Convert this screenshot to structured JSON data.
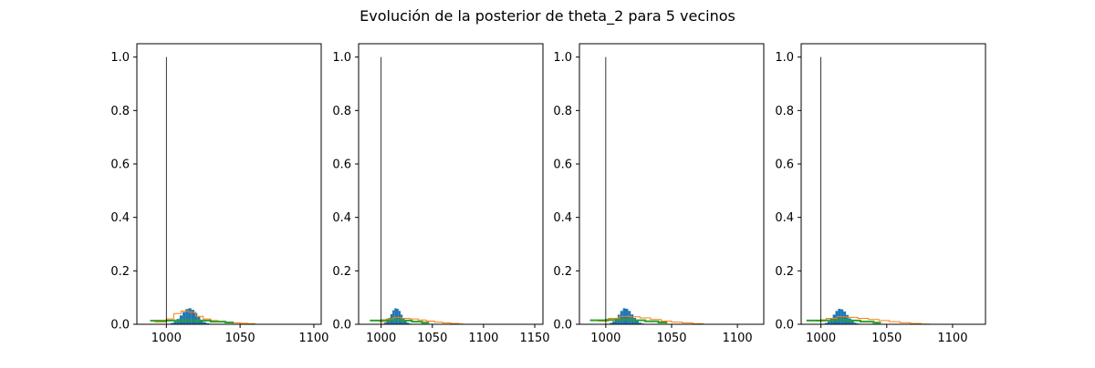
{
  "figure": {
    "title": "Evolución de la posterior de theta_2 para 5 vecinos"
  },
  "colors": {
    "blue": "#1f77b4",
    "orange": "#ff7f0e",
    "green": "#2ca02c",
    "vline": "#000000"
  },
  "chart_data": [
    {
      "type": "histogram",
      "title": "",
      "xlabel": "",
      "ylabel": "",
      "xlim": [
        980,
        1105
      ],
      "ylim": [
        0,
        1.05
      ],
      "x_ticks": [
        1000,
        1050,
        1100
      ],
      "y_ticks": [
        0.0,
        0.2,
        0.4,
        0.6,
        0.8,
        1.0
      ],
      "grid": false,
      "vline": {
        "x": 1000,
        "y": 1.0
      },
      "series": [
        {
          "style": "filled",
          "color": "blue",
          "x": [
            1002,
            1004,
            1006,
            1008,
            1010,
            1012,
            1014,
            1016,
            1018,
            1020,
            1022,
            1024,
            1026,
            1028,
            1030
          ],
          "y": [
            0.002,
            0.005,
            0.01,
            0.02,
            0.033,
            0.046,
            0.057,
            0.06,
            0.054,
            0.042,
            0.028,
            0.016,
            0.008,
            0.004,
            0.002
          ]
        },
        {
          "style": "step",
          "color": "orange",
          "x": [
            992,
            1000,
            1005,
            1010,
            1015,
            1020,
            1025,
            1030,
            1035,
            1040,
            1045,
            1050,
            1055,
            1060
          ],
          "y": [
            0.008,
            0.02,
            0.04,
            0.05,
            0.045,
            0.03,
            0.02,
            0.014,
            0.01,
            0.008,
            0.005,
            0.004,
            0.002,
            0.001
          ]
        },
        {
          "style": "step",
          "color": "green",
          "x": [
            989,
            1000,
            1010,
            1020,
            1030,
            1040,
            1045
          ],
          "y": [
            0.013,
            0.014,
            0.015,
            0.014,
            0.01,
            0.007,
            0.003
          ]
        }
      ]
    },
    {
      "type": "histogram",
      "title": "",
      "xlabel": "",
      "ylabel": "",
      "xlim": [
        978,
        1158
      ],
      "ylim": [
        0,
        1.05
      ],
      "x_ticks": [
        1000,
        1050,
        1100,
        1150
      ],
      "y_ticks": [
        0.0,
        0.2,
        0.4,
        0.6,
        0.8,
        1.0
      ],
      "grid": false,
      "vline": {
        "x": 1000,
        "y": 1.0
      },
      "series": [
        {
          "style": "filled",
          "color": "blue",
          "x": [
            1002,
            1004,
            1006,
            1008,
            1010,
            1012,
            1014,
            1016,
            1018,
            1020,
            1022,
            1024,
            1026,
            1028,
            1030
          ],
          "y": [
            0.002,
            0.006,
            0.012,
            0.024,
            0.038,
            0.052,
            0.06,
            0.058,
            0.05,
            0.036,
            0.022,
            0.012,
            0.006,
            0.003,
            0.001
          ]
        },
        {
          "style": "step",
          "color": "orange",
          "x": [
            998,
            1005,
            1012,
            1020,
            1028,
            1036,
            1044,
            1052,
            1060,
            1068,
            1076,
            1080
          ],
          "y": [
            0.01,
            0.02,
            0.026,
            0.022,
            0.02,
            0.016,
            0.012,
            0.008,
            0.005,
            0.003,
            0.001,
            0.0
          ]
        },
        {
          "style": "step",
          "color": "green",
          "x": [
            989,
            1000,
            1010,
            1020,
            1030,
            1040,
            1046
          ],
          "y": [
            0.014,
            0.015,
            0.016,
            0.014,
            0.01,
            0.006,
            0.003
          ]
        }
      ]
    },
    {
      "type": "histogram",
      "title": "",
      "xlabel": "",
      "ylabel": "",
      "xlim": [
        980,
        1120
      ],
      "ylim": [
        0,
        1.05
      ],
      "x_ticks": [
        1000,
        1050,
        1100
      ],
      "y_ticks": [
        0.0,
        0.2,
        0.4,
        0.6,
        0.8,
        1.0
      ],
      "grid": false,
      "vline": {
        "x": 1000,
        "y": 1.0
      },
      "series": [
        {
          "style": "filled",
          "color": "blue",
          "x": [
            1002,
            1004,
            1006,
            1008,
            1010,
            1012,
            1014,
            1016,
            1018,
            1020,
            1022,
            1024,
            1026,
            1028,
            1030
          ],
          "y": [
            0.002,
            0.005,
            0.011,
            0.022,
            0.036,
            0.05,
            0.06,
            0.058,
            0.05,
            0.037,
            0.024,
            0.013,
            0.006,
            0.003,
            0.001
          ]
        },
        {
          "style": "step",
          "color": "orange",
          "x": [
            994,
            1002,
            1010,
            1018,
            1026,
            1034,
            1042,
            1050,
            1058,
            1066,
            1074
          ],
          "y": [
            0.012,
            0.022,
            0.03,
            0.028,
            0.024,
            0.018,
            0.012,
            0.008,
            0.005,
            0.002,
            0.0
          ]
        },
        {
          "style": "step",
          "color": "green",
          "x": [
            988,
            1000,
            1010,
            1020,
            1030,
            1040,
            1046
          ],
          "y": [
            0.015,
            0.016,
            0.017,
            0.015,
            0.011,
            0.007,
            0.003
          ]
        }
      ]
    },
    {
      "type": "histogram",
      "title": "",
      "xlabel": "",
      "ylabel": "",
      "xlim": [
        985,
        1125
      ],
      "ylim": [
        0,
        1.05
      ],
      "x_ticks": [
        1000,
        1050,
        1100
      ],
      "y_ticks": [
        0.0,
        0.2,
        0.4,
        0.6,
        0.8,
        1.0
      ],
      "grid": false,
      "vline": {
        "x": 1000,
        "y": 1.0
      },
      "series": [
        {
          "style": "filled",
          "color": "blue",
          "x": [
            1002,
            1004,
            1006,
            1008,
            1010,
            1012,
            1014,
            1016,
            1018,
            1020,
            1022,
            1024,
            1026,
            1028,
            1030
          ],
          "y": [
            0.002,
            0.005,
            0.011,
            0.022,
            0.036,
            0.05,
            0.058,
            0.056,
            0.048,
            0.035,
            0.022,
            0.012,
            0.006,
            0.003,
            0.001
          ]
        },
        {
          "style": "step",
          "color": "orange",
          "x": [
            996,
            1004,
            1012,
            1020,
            1028,
            1036,
            1044,
            1052,
            1060,
            1068,
            1076,
            1082
          ],
          "y": [
            0.012,
            0.022,
            0.028,
            0.026,
            0.022,
            0.018,
            0.014,
            0.01,
            0.006,
            0.003,
            0.001,
            0.0
          ]
        },
        {
          "style": "step",
          "color": "green",
          "x": [
            989,
            1000,
            1010,
            1020,
            1030,
            1040,
            1045
          ],
          "y": [
            0.014,
            0.015,
            0.016,
            0.014,
            0.01,
            0.006,
            0.003
          ]
        }
      ]
    }
  ]
}
